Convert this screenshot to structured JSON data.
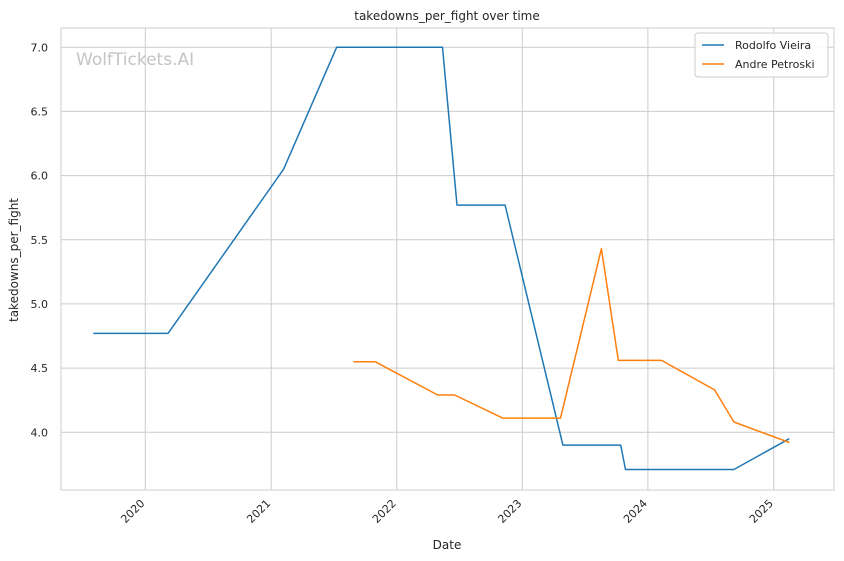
{
  "chart_data": {
    "type": "line",
    "title": "takedowns_per_fight over time",
    "xlabel": "Date",
    "ylabel": "takedowns_per_fight",
    "x_type": "date",
    "xlim": [
      "2019-05-01",
      "2025-06-25"
    ],
    "ylim": [
      3.55,
      7.15
    ],
    "x_ticks": [
      {
        "date": "2020-01-01",
        "label": "2020"
      },
      {
        "date": "2021-01-01",
        "label": "2021"
      },
      {
        "date": "2022-01-01",
        "label": "2022"
      },
      {
        "date": "2023-01-01",
        "label": "2023"
      },
      {
        "date": "2024-01-01",
        "label": "2024"
      },
      {
        "date": "2025-01-01",
        "label": "2025"
      }
    ],
    "y_ticks": [
      {
        "value": 4.0,
        "label": "4.0"
      },
      {
        "value": 4.5,
        "label": "4.5"
      },
      {
        "value": 5.0,
        "label": "5.0"
      },
      {
        "value": 5.5,
        "label": "5.5"
      },
      {
        "value": 6.0,
        "label": "6.0"
      },
      {
        "value": 6.5,
        "label": "6.5"
      },
      {
        "value": 7.0,
        "label": "7.0"
      }
    ],
    "grid": true,
    "legend_position": "top-right",
    "watermark": "WolfTickets.AI",
    "series": [
      {
        "name": "Rodolfo Vieira",
        "color": "#1f77b4",
        "points": [
          {
            "x": "2019-08-03",
            "y": 4.77
          },
          {
            "x": "2020-03-07",
            "y": 4.77
          },
          {
            "x": "2021-02-06",
            "y": 6.05
          },
          {
            "x": "2021-07-10",
            "y": 7.0
          },
          {
            "x": "2022-05-14",
            "y": 7.0
          },
          {
            "x": "2022-06-25",
            "y": 5.77
          },
          {
            "x": "2022-11-12",
            "y": 5.77
          },
          {
            "x": "2023-04-29",
            "y": 3.9
          },
          {
            "x": "2023-10-14",
            "y": 3.9
          },
          {
            "x": "2023-10-28",
            "y": 3.71
          },
          {
            "x": "2024-09-07",
            "y": 3.71
          },
          {
            "x": "2025-02-15",
            "y": 3.95
          }
        ]
      },
      {
        "name": "Andre Petroski",
        "color": "#ff7f0e",
        "points": [
          {
            "x": "2021-08-28",
            "y": 4.55
          },
          {
            "x": "2021-10-30",
            "y": 4.55
          },
          {
            "x": "2022-04-30",
            "y": 4.29
          },
          {
            "x": "2022-06-18",
            "y": 4.29
          },
          {
            "x": "2022-11-05",
            "y": 4.11
          },
          {
            "x": "2023-04-22",
            "y": 4.11
          },
          {
            "x": "2023-08-19",
            "y": 5.43
          },
          {
            "x": "2023-10-07",
            "y": 4.56
          },
          {
            "x": "2024-02-10",
            "y": 4.56
          },
          {
            "x": "2024-07-13",
            "y": 4.33
          },
          {
            "x": "2024-09-07",
            "y": 4.08
          },
          {
            "x": "2025-02-15",
            "y": 3.92
          }
        ]
      }
    ]
  }
}
